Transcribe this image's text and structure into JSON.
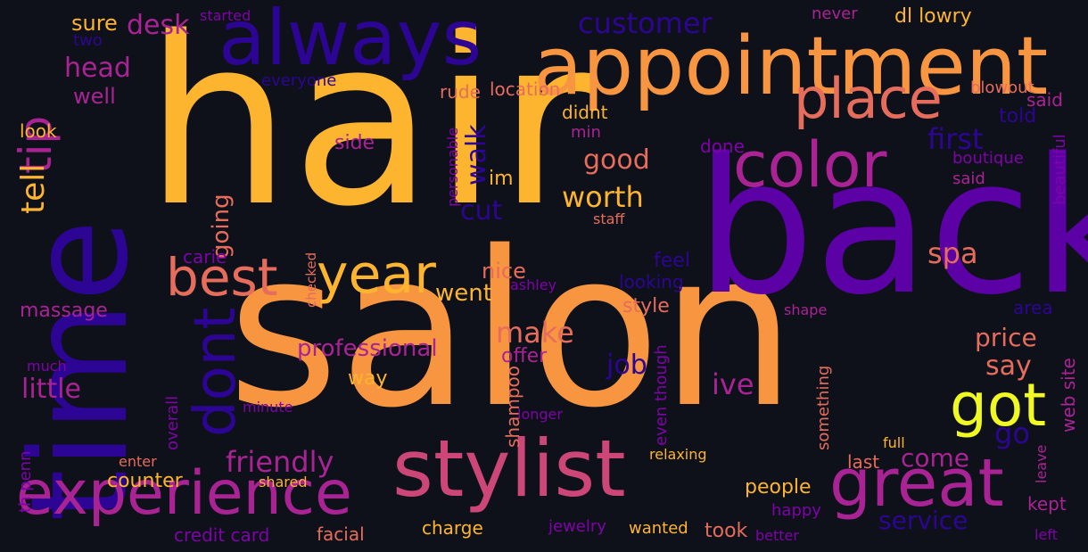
{
  "palette": {
    "background": "#0f111a",
    "yellow": "#fdb42f",
    "orange": "#f89540",
    "salmon": "#e66c5c",
    "pink": "#cc4778",
    "magenta": "#aa2395",
    "purple": "#7e03a8",
    "violet": "#5c01a6",
    "indigo": "#2c0594",
    "gold": "#f0f921"
  },
  "words": [
    {
      "text": "hair",
      "color": "yellow"
    },
    {
      "text": "salon",
      "color": "orange"
    },
    {
      "text": "back",
      "color": "violet"
    },
    {
      "text": "time",
      "color": "indigo"
    },
    {
      "text": "appointment",
      "color": "orange"
    },
    {
      "text": "always",
      "color": "indigo"
    },
    {
      "text": "stylist",
      "color": "pink"
    },
    {
      "text": "great",
      "color": "magenta"
    },
    {
      "text": "experience",
      "color": "magenta"
    },
    {
      "text": "color",
      "color": "magenta"
    },
    {
      "text": "place",
      "color": "salmon"
    },
    {
      "text": "best",
      "color": "salmon"
    },
    {
      "text": "year",
      "color": "yellow"
    },
    {
      "text": "got",
      "color": "gold"
    },
    {
      "text": "dont",
      "color": "indigo"
    },
    {
      "text": "tip",
      "color": "magenta"
    },
    {
      "text": "tell",
      "color": "yellow"
    },
    {
      "text": "customer",
      "color": "indigo"
    },
    {
      "text": "head",
      "color": "magenta"
    },
    {
      "text": "desk",
      "color": "magenta"
    },
    {
      "text": "sure",
      "color": "yellow"
    },
    {
      "text": "two",
      "color": "indigo"
    },
    {
      "text": "started",
      "color": "purple"
    },
    {
      "text": "rude",
      "color": "salmon"
    },
    {
      "text": "never",
      "color": "magenta"
    },
    {
      "text": "dl lowry",
      "color": "yellow"
    },
    {
      "text": "well",
      "color": "magenta"
    },
    {
      "text": "everyone",
      "color": "indigo"
    },
    {
      "text": "location",
      "color": "salmon"
    },
    {
      "text": "blowout",
      "color": "salmon"
    },
    {
      "text": "said",
      "color": "magenta"
    },
    {
      "text": "told",
      "color": "indigo"
    },
    {
      "text": "first",
      "color": "indigo"
    },
    {
      "text": "didnt",
      "color": "yellow"
    },
    {
      "text": "min",
      "color": "magenta"
    },
    {
      "text": "look",
      "color": "yellow"
    },
    {
      "text": "side",
      "color": "magenta"
    },
    {
      "text": "done",
      "color": "purple"
    },
    {
      "text": "boutique",
      "color": "purple"
    },
    {
      "text": "said",
      "color": "magenta"
    },
    {
      "text": "beautiful",
      "color": "purple"
    },
    {
      "text": "good",
      "color": "salmon"
    },
    {
      "text": "walk",
      "color": "indigo"
    },
    {
      "text": "worth",
      "color": "yellow"
    },
    {
      "text": "im",
      "color": "yellow"
    },
    {
      "text": "cut",
      "color": "indigo"
    },
    {
      "text": "personable",
      "color": "purple"
    },
    {
      "text": "staff",
      "color": "salmon"
    },
    {
      "text": "going",
      "color": "salmon"
    },
    {
      "text": "carie",
      "color": "purple"
    },
    {
      "text": "checked",
      "color": "salmon"
    },
    {
      "text": "ashley",
      "color": "purple"
    },
    {
      "text": "went",
      "color": "yellow"
    },
    {
      "text": "feel",
      "color": "indigo"
    },
    {
      "text": "looking",
      "color": "indigo"
    },
    {
      "text": "spa",
      "color": "salmon"
    },
    {
      "text": "massage",
      "color": "magenta"
    },
    {
      "text": "nice",
      "color": "salmon"
    },
    {
      "text": "make",
      "color": "salmon"
    },
    {
      "text": "style",
      "color": "salmon"
    },
    {
      "text": "shape",
      "color": "magenta"
    },
    {
      "text": "area",
      "color": "indigo"
    },
    {
      "text": "price",
      "color": "salmon"
    },
    {
      "text": "professional",
      "color": "magenta"
    },
    {
      "text": "offer",
      "color": "magenta"
    },
    {
      "text": "job",
      "color": "indigo"
    },
    {
      "text": "say",
      "color": "salmon"
    },
    {
      "text": "little",
      "color": "magenta"
    },
    {
      "text": "ive",
      "color": "magenta"
    },
    {
      "text": "way",
      "color": "yellow"
    },
    {
      "text": "shampoo",
      "color": "salmon"
    },
    {
      "text": "even though",
      "color": "purple"
    },
    {
      "text": "something",
      "color": "salmon"
    },
    {
      "text": "web site",
      "color": "magenta"
    },
    {
      "text": "much",
      "color": "purple"
    },
    {
      "text": "overall",
      "color": "purple"
    },
    {
      "text": "minute",
      "color": "purple"
    },
    {
      "text": "longer",
      "color": "purple"
    },
    {
      "text": "go",
      "color": "indigo"
    },
    {
      "text": "th penn",
      "color": "purple"
    },
    {
      "text": "enter",
      "color": "salmon"
    },
    {
      "text": "friendly",
      "color": "magenta"
    },
    {
      "text": "come",
      "color": "magenta"
    },
    {
      "text": "last",
      "color": "salmon"
    },
    {
      "text": "full",
      "color": "yellow"
    },
    {
      "text": "relaxing",
      "color": "yellow"
    },
    {
      "text": "leave",
      "color": "magenta"
    },
    {
      "text": "counter",
      "color": "yellow"
    },
    {
      "text": "shared",
      "color": "yellow"
    },
    {
      "text": "people",
      "color": "yellow"
    },
    {
      "text": "service",
      "color": "indigo"
    },
    {
      "text": "kept",
      "color": "magenta"
    },
    {
      "text": "happy",
      "color": "purple"
    },
    {
      "text": "charge",
      "color": "yellow"
    },
    {
      "text": "jewelry",
      "color": "purple"
    },
    {
      "text": "wanted",
      "color": "yellow"
    },
    {
      "text": "took",
      "color": "salmon"
    },
    {
      "text": "credit card",
      "color": "purple"
    },
    {
      "text": "facial",
      "color": "salmon"
    },
    {
      "text": "better",
      "color": "purple"
    },
    {
      "text": "left",
      "color": "purple"
    }
  ]
}
